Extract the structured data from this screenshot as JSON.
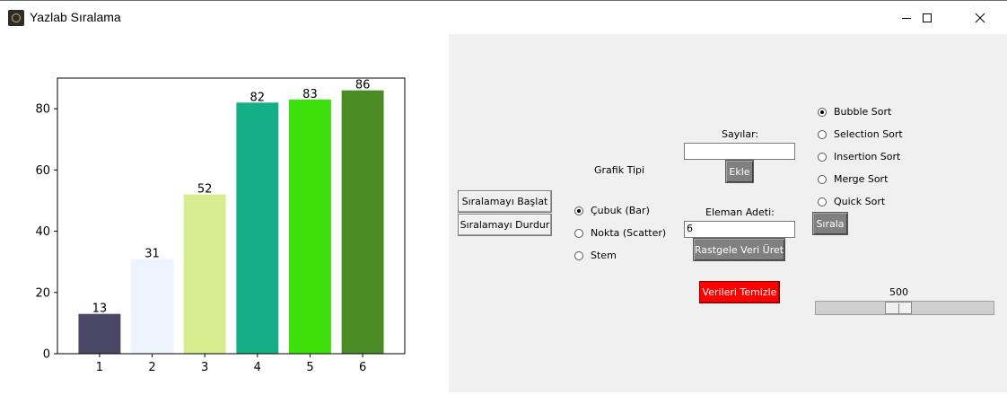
{
  "window": {
    "title": "Yazlab Sıralama"
  },
  "chart_data": {
    "type": "bar",
    "categories": [
      "1",
      "2",
      "3",
      "4",
      "5",
      "6"
    ],
    "values": [
      13,
      31,
      52,
      82,
      83,
      86
    ],
    "colors": [
      "#4a4766",
      "#eef4fe",
      "#d6ec8f",
      "#16ae87",
      "#3ee00c",
      "#4a8b25"
    ],
    "ylim": [
      0,
      90
    ],
    "yticks": [
      0,
      20,
      40,
      60,
      80
    ],
    "title": "",
    "xlabel": "",
    "ylabel": ""
  },
  "controls": {
    "start_label": "Sıralamayı Başlat",
    "stop_label": "Sıralamayı Durdur",
    "chart_type_label": "Grafik Tipi",
    "chart_types": [
      {
        "label": "Çubuk (Bar)",
        "checked": true
      },
      {
        "label": "Nokta (Scatter)",
        "checked": false
      },
      {
        "label": "Stem",
        "checked": false
      }
    ],
    "numbers_label": "Sayılar:",
    "numbers_value": "",
    "add_label": "Ekle",
    "count_label": "Eleman Adeti:",
    "count_value": "6",
    "random_label": "Rastgele Veri Üret",
    "clear_label": "Verileri Temizle",
    "algorithms": [
      {
        "label": "Bubble Sort",
        "checked": true
      },
      {
        "label": "Selection Sort",
        "checked": false
      },
      {
        "label": "Insertion Sort",
        "checked": false
      },
      {
        "label": "Merge Sort",
        "checked": false
      },
      {
        "label": "Quick Sort",
        "checked": false
      }
    ],
    "sort_label": "Sırala",
    "speed_value": "500",
    "speed_fraction": 0.46
  }
}
